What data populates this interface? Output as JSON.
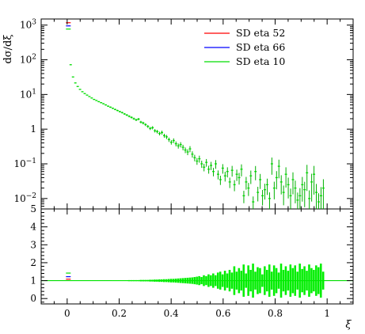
{
  "chart_data": {
    "type": "scatter",
    "ylabel": "dσ/dξ",
    "xlabel": "ξ",
    "x_ticks": [
      "0",
      "0.2",
      "0.4",
      "0.6",
      "0.8",
      "1"
    ],
    "x_range": [
      -0.1,
      1.1
    ],
    "y_scale": "log",
    "y_range": [
      0.005,
      1500
    ],
    "y_ticks": [
      {
        "value": 1000,
        "base": "10",
        "exp": "3"
      },
      {
        "value": 100,
        "base": "10",
        "exp": "2"
      },
      {
        "value": 10,
        "base": "10",
        "exp": "1"
      },
      {
        "value": 1,
        "base": "1",
        "exp": ""
      },
      {
        "value": 0.1,
        "base": "10",
        "exp": "−1"
      },
      {
        "value": 0.01,
        "base": "10",
        "exp": "−2"
      }
    ],
    "legend_position": "top-right",
    "series": [
      {
        "name": "SD eta 52",
        "color": "#ff0000"
      },
      {
        "name": "SD eta 66",
        "color": "#0000ff"
      },
      {
        "name": "SD eta 10",
        "color": "#00dd00"
      }
    ],
    "points": [
      [
        0.0045,
        900
      ],
      [
        0.0135,
        72
      ],
      [
        0.0225,
        32
      ],
      [
        0.0315,
        21.5
      ],
      [
        0.0405,
        17
      ],
      [
        0.0495,
        14
      ],
      [
        0.0585,
        12
      ],
      [
        0.0675,
        10.6
      ],
      [
        0.0765,
        9.6
      ],
      [
        0.0855,
        8.7
      ],
      [
        0.0945,
        7.9
      ],
      [
        0.1035,
        7.2
      ],
      [
        0.1125,
        6.7
      ],
      [
        0.1215,
        6.2
      ],
      [
        0.1305,
        5.8
      ],
      [
        0.1395,
        5.4
      ],
      [
        0.1485,
        5.0
      ],
      [
        0.1575,
        4.6
      ],
      [
        0.1665,
        4.3
      ],
      [
        0.1755,
        4.0
      ],
      [
        0.1845,
        3.7
      ],
      [
        0.1935,
        3.45
      ],
      [
        0.2025,
        3.2
      ],
      [
        0.2115,
        3.0
      ],
      [
        0.2205,
        2.75
      ],
      [
        0.2295,
        2.55
      ],
      [
        0.2385,
        2.35
      ],
      [
        0.2475,
        2.18
      ],
      [
        0.2565,
        2.0
      ],
      [
        0.2655,
        1.85
      ],
      [
        0.2745,
        1.95
      ],
      [
        0.2835,
        1.6
      ],
      [
        0.2925,
        1.5
      ],
      [
        0.3015,
        1.35
      ],
      [
        0.3105,
        1.2
      ],
      [
        0.3195,
        1.05
      ],
      [
        0.3285,
        1.1
      ],
      [
        0.3375,
        0.9
      ],
      [
        0.3465,
        0.85
      ],
      [
        0.3555,
        0.75
      ],
      [
        0.3645,
        0.8
      ],
      [
        0.3735,
        0.65
      ],
      [
        0.3825,
        0.6
      ],
      [
        0.3915,
        0.5
      ],
      [
        0.4005,
        0.42
      ],
      [
        0.4095,
        0.47
      ],
      [
        0.4185,
        0.38
      ],
      [
        0.4275,
        0.33
      ],
      [
        0.4365,
        0.36
      ],
      [
        0.4455,
        0.3
      ],
      [
        0.4545,
        0.25
      ],
      [
        0.4635,
        0.22
      ],
      [
        0.4725,
        0.27
      ],
      [
        0.4815,
        0.19
      ],
      [
        0.4905,
        0.15
      ],
      [
        0.4995,
        0.12
      ],
      [
        0.5085,
        0.14
      ],
      [
        0.5175,
        0.1
      ],
      [
        0.5265,
        0.08
      ],
      [
        0.5355,
        0.11
      ],
      [
        0.5445,
        0.07
      ],
      [
        0.5535,
        0.09
      ],
      [
        0.5625,
        0.06
      ],
      [
        0.5715,
        0.1
      ],
      [
        0.5805,
        0.05
      ],
      [
        0.5895,
        0.035
      ],
      [
        0.5985,
        0.075
      ],
      [
        0.6075,
        0.045
      ],
      [
        0.6165,
        0.06
      ],
      [
        0.6255,
        0.03
      ],
      [
        0.6345,
        0.065
      ],
      [
        0.6435,
        0.025
      ],
      [
        0.6525,
        0.05
      ],
      [
        0.6615,
        0.04
      ],
      [
        0.6705,
        0.07
      ],
      [
        0.6795,
        0.012
      ],
      [
        0.6885,
        0.03
      ],
      [
        0.6975,
        0.02
      ],
      [
        0.7065,
        0.045
      ],
      [
        0.7155,
        0.008
      ],
      [
        0.7245,
        0.06
      ],
      [
        0.7335,
        0.015
      ],
      [
        0.7425,
        0.035
      ],
      [
        0.7515,
        0.012
      ],
      [
        0.7605,
        0.018
      ],
      [
        0.7695,
        0.025
      ],
      [
        0.7785,
        0.01
      ],
      [
        0.7875,
        0.1
      ],
      [
        0.7965,
        0.02
      ],
      [
        0.8055,
        0.04
      ],
      [
        0.8145,
        0.085
      ],
      [
        0.8235,
        0.03
      ],
      [
        0.8325,
        0.015
      ],
      [
        0.8415,
        0.05
      ],
      [
        0.8505,
        0.025
      ],
      [
        0.8595,
        0.012
      ],
      [
        0.8685,
        0.035
      ],
      [
        0.8775,
        0.02
      ],
      [
        0.8865,
        0.009
      ],
      [
        0.8955,
        0.012
      ],
      [
        0.9045,
        0.025
      ],
      [
        0.9135,
        0.018
      ],
      [
        0.9225,
        0.055
      ],
      [
        0.9315,
        0.01
      ],
      [
        0.9405,
        0.03
      ],
      [
        0.9495,
        0.05
      ],
      [
        0.9585,
        0.015
      ],
      [
        0.9675,
        0.008
      ],
      [
        0.9765,
        0.012
      ],
      [
        0.9855,
        0.02
      ]
    ],
    "ratio": {
      "y_range": [
        -0.3,
        5
      ],
      "y_ticks": [
        "0",
        "1",
        "2",
        "3",
        "4",
        "5"
      ],
      "first_bin_markers": [
        1.42,
        1.22,
        1.08
      ],
      "band_halfwidth": [
        0.06,
        0.02,
        0.01,
        0.01,
        0.01,
        0.01,
        0.01,
        0.01,
        0.01,
        0.01,
        0.01,
        0.01,
        0.01,
        0.01,
        0.01,
        0.01,
        0.01,
        0.01,
        0.01,
        0.02,
        0.02,
        0.02,
        0.02,
        0.02,
        0.02,
        0.02,
        0.03,
        0.03,
        0.03,
        0.03,
        0.03,
        0.04,
        0.04,
        0.04,
        0.04,
        0.05,
        0.05,
        0.06,
        0.06,
        0.07,
        0.07,
        0.08,
        0.08,
        0.09,
        0.1,
        0.1,
        0.11,
        0.12,
        0.13,
        0.14,
        0.15,
        0.16,
        0.17,
        0.18,
        0.2,
        0.22,
        0.25,
        0.2,
        0.3,
        0.25,
        0.35,
        0.3,
        0.4,
        0.3,
        0.45,
        0.5,
        0.35,
        0.55,
        0.4,
        0.6,
        0.45,
        0.8,
        0.5,
        0.7,
        0.55,
        0.9,
        0.4,
        0.85,
        0.6,
        0.95,
        0.5,
        0.75,
        0.7,
        0.35,
        0.8,
        0.6,
        0.9,
        0.5,
        0.85,
        0.7,
        0.45,
        0.95,
        0.6,
        0.8,
        0.55,
        0.9,
        0.7,
        0.85,
        0.5,
        0.95,
        0.65,
        0.8,
        0.55,
        0.9,
        0.7,
        0.6,
        0.85,
        0.75,
        0.95,
        0.5
      ]
    }
  }
}
